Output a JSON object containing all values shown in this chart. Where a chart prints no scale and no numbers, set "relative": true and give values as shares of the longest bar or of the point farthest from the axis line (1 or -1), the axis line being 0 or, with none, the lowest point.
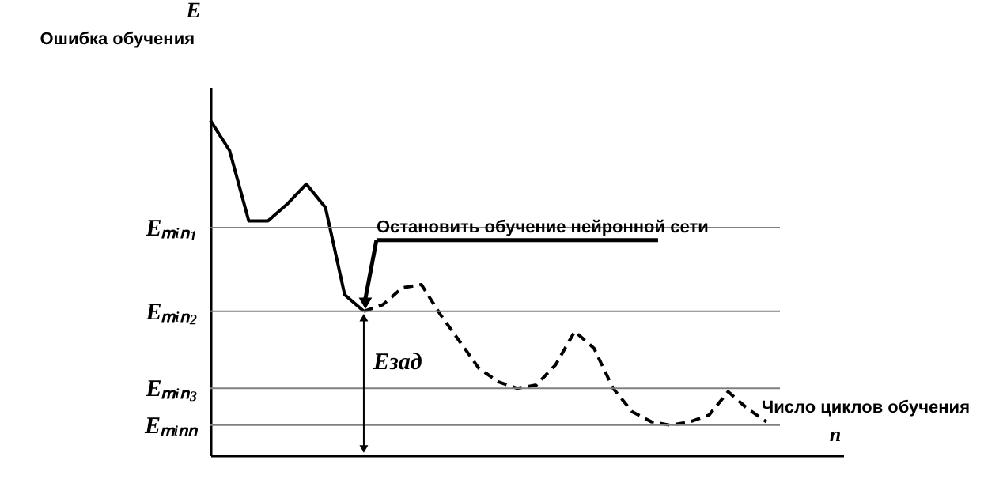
{
  "chart_data": {
    "type": "line",
    "relative": true,
    "ylabel": "Ошибка обучения",
    "xlabel": "Число циклов обучения",
    "annotations": [
      "E",
      "n",
      "Остановить обучение нейронной сети",
      "Eзад"
    ],
    "categories": [
      null,
      null,
      null,
      null,
      null,
      null,
      null,
      null,
      null,
      null,
      null,
      null,
      null,
      null,
      null,
      null,
      null,
      null,
      null,
      null,
      null,
      null,
      null,
      null,
      null,
      null,
      null,
      null,
      null,
      null
    ],
    "series": [
      {
        "color": "#000000",
        "line_style": "solid",
        "values": [
          1.0,
          0.91,
          0.7,
          0.7,
          0.75,
          0.81,
          0.74,
          0.48,
          0.43,
          null,
          null,
          null,
          null,
          null,
          null,
          null,
          null,
          null,
          null,
          null,
          null,
          null,
          null,
          null,
          null,
          null,
          null,
          null,
          null,
          null
        ]
      },
      {
        "color": "#000000",
        "line_style": "dashed",
        "values": [
          null,
          null,
          null,
          null,
          null,
          null,
          null,
          null,
          0.43,
          0.45,
          0.5,
          0.51,
          0.42,
          0.34,
          0.26,
          0.22,
          0.2,
          0.21,
          0.27,
          0.37,
          0.32,
          0.2,
          0.13,
          0.1,
          0.09,
          0.1,
          0.12,
          0.19,
          0.14,
          0.1
        ]
      }
    ],
    "ref_lines": [
      {
        "axis": "y",
        "value": 0.68,
        "label": "Eₘᵢₙ₁",
        "color": "#808080"
      },
      {
        "axis": "y",
        "value": 0.43,
        "label": "Eₘᵢₙ₂",
        "color": "#808080"
      },
      {
        "axis": "y",
        "value": 0.2,
        "label": "Eₘᵢₙ₃",
        "color": "#808080"
      },
      {
        "axis": "y",
        "value": 0.09,
        "label": "Eₘᵢₙₙ",
        "color": "#808080"
      }
    ],
    "grid": false,
    "tick_labels": false,
    "marker": "none"
  }
}
